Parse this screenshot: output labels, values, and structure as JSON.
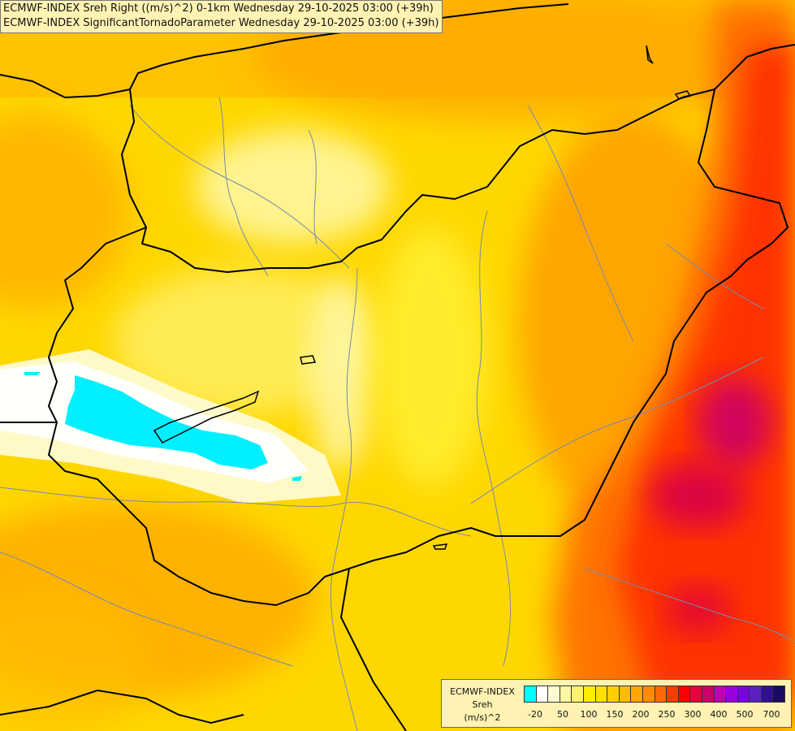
{
  "title_lines": [
    "ECMWF-INDEX Sreh Right ((m/s)^2) 0-1km Wednesday 29-10-2025 03:00 (+39h)",
    "ECMWF-INDEX SignificantTornadoParameter Wednesday 29-10-2025 03:00 (+39h)"
  ],
  "legend": {
    "line1": "ECMWF-INDEX",
    "line2": "Sreh",
    "line3": "(m/s)^2",
    "colors": [
      "#00ffff",
      "#ffffff",
      "#fffbd2",
      "#fff8a0",
      "#fff26a",
      "#ffee00",
      "#ffe000",
      "#ffcf00",
      "#ffbc00",
      "#ffa500",
      "#ff8c00",
      "#ff6a00",
      "#ff3c00",
      "#ff0000",
      "#e6003c",
      "#cc0066",
      "#c000b4",
      "#9a00dc",
      "#7a00e6",
      "#5a20c0",
      "#301090",
      "#1a0a60"
    ],
    "ticks": [
      "-20",
      "50",
      "100",
      "150",
      "200",
      "250",
      "300",
      "400",
      "500",
      "700"
    ]
  },
  "colors": {
    "title_bg": "#fff2b3",
    "border": "#000000",
    "river": "#7a8aa8"
  }
}
